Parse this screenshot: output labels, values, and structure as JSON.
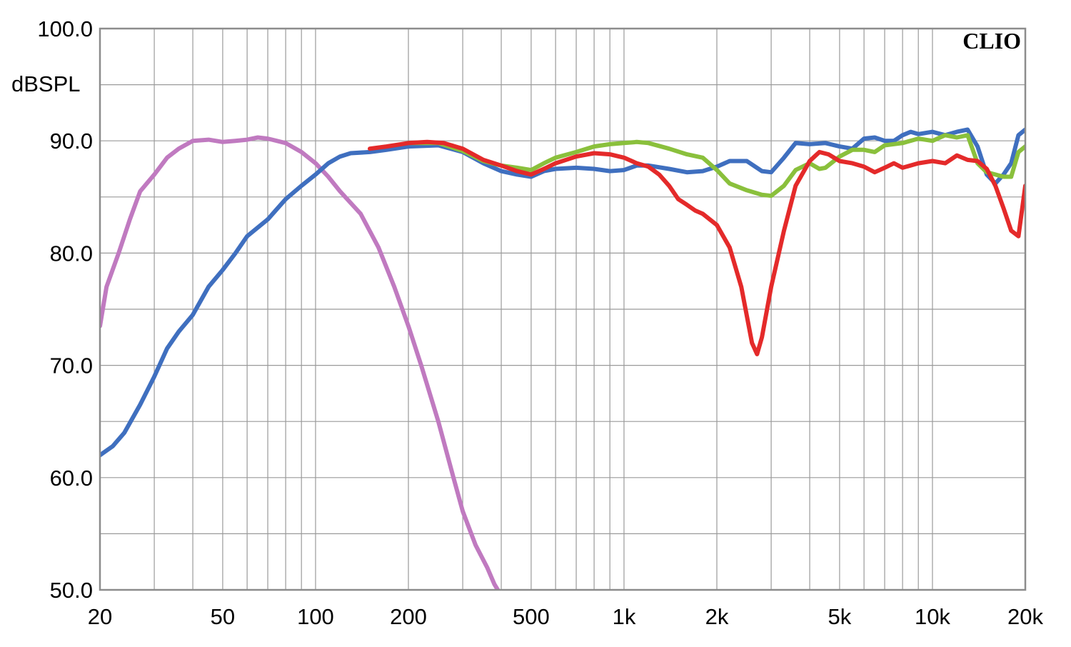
{
  "chart_data": {
    "type": "line",
    "title": "",
    "xlabel": "",
    "ylabel": "dBSPL",
    "brand": "CLIO",
    "x_scale": "log",
    "xlim": [
      20,
      20000
    ],
    "ylim": [
      50,
      100
    ],
    "grid": true,
    "legend": "none",
    "x_ticks": [
      {
        "value": 20,
        "label": "20"
      },
      {
        "value": 50,
        "label": "50"
      },
      {
        "value": 100,
        "label": "100"
      },
      {
        "value": 200,
        "label": "200"
      },
      {
        "value": 500,
        "label": "500"
      },
      {
        "value": 1000,
        "label": "1k"
      },
      {
        "value": 2000,
        "label": "2k"
      },
      {
        "value": 5000,
        "label": "5k"
      },
      {
        "value": 10000,
        "label": "10k"
      },
      {
        "value": 20000,
        "label": "20k"
      }
    ],
    "y_ticks": [
      {
        "value": 100,
        "label": "100.0"
      },
      {
        "value": 90,
        "label": "90.0"
      },
      {
        "value": 80,
        "label": "80.0"
      },
      {
        "value": 70,
        "label": "70.0"
      },
      {
        "value": 60,
        "label": "60.0"
      },
      {
        "value": 50,
        "label": "50.0"
      }
    ],
    "series": [
      {
        "color": "#c07ac0",
        "points": [
          [
            20,
            73.5
          ],
          [
            21,
            77
          ],
          [
            23,
            80
          ],
          [
            25,
            83
          ],
          [
            27,
            85.5
          ],
          [
            30,
            87
          ],
          [
            33,
            88.5
          ],
          [
            36,
            89.3
          ],
          [
            40,
            90
          ],
          [
            45,
            90.1
          ],
          [
            50,
            89.9
          ],
          [
            55,
            90
          ],
          [
            60,
            90.1
          ],
          [
            65,
            90.3
          ],
          [
            70,
            90.2
          ],
          [
            80,
            89.8
          ],
          [
            90,
            89
          ],
          [
            100,
            88
          ],
          [
            110,
            86.8
          ],
          [
            120,
            85.5
          ],
          [
            140,
            83.5
          ],
          [
            160,
            80.5
          ],
          [
            180,
            77
          ],
          [
            200,
            73.5
          ],
          [
            220,
            70
          ],
          [
            250,
            65
          ],
          [
            280,
            60
          ],
          [
            300,
            57
          ],
          [
            330,
            54
          ],
          [
            360,
            52
          ],
          [
            380,
            50.5
          ],
          [
            400,
            49.5
          ]
        ]
      },
      {
        "color": "#3f6fbf",
        "points": [
          [
            20,
            62
          ],
          [
            22,
            62.8
          ],
          [
            24,
            64
          ],
          [
            27,
            66.5
          ],
          [
            30,
            69
          ],
          [
            33,
            71.5
          ],
          [
            36,
            73
          ],
          [
            40,
            74.5
          ],
          [
            45,
            77
          ],
          [
            50,
            78.5
          ],
          [
            55,
            80
          ],
          [
            60,
            81.5
          ],
          [
            70,
            83
          ],
          [
            80,
            84.8
          ],
          [
            90,
            86
          ],
          [
            100,
            87
          ],
          [
            110,
            88
          ],
          [
            120,
            88.6
          ],
          [
            130,
            88.9
          ],
          [
            150,
            89
          ],
          [
            170,
            89.2
          ],
          [
            200,
            89.5
          ],
          [
            250,
            89.6
          ],
          [
            300,
            89
          ],
          [
            350,
            88
          ],
          [
            400,
            87.3
          ],
          [
            450,
            87
          ],
          [
            500,
            86.8
          ],
          [
            550,
            87.3
          ],
          [
            600,
            87.5
          ],
          [
            700,
            87.6
          ],
          [
            800,
            87.5
          ],
          [
            900,
            87.3
          ],
          [
            1000,
            87.4
          ],
          [
            1100,
            87.8
          ],
          [
            1200,
            87.8
          ],
          [
            1400,
            87.5
          ],
          [
            1600,
            87.2
          ],
          [
            1800,
            87.3
          ],
          [
            2000,
            87.7
          ],
          [
            2200,
            88.2
          ],
          [
            2500,
            88.2
          ],
          [
            2800,
            87.3
          ],
          [
            3000,
            87.2
          ],
          [
            3300,
            88.5
          ],
          [
            3600,
            89.8
          ],
          [
            4000,
            89.7
          ],
          [
            4500,
            89.8
          ],
          [
            5000,
            89.5
          ],
          [
            5500,
            89.3
          ],
          [
            6000,
            90.2
          ],
          [
            6500,
            90.3
          ],
          [
            7000,
            90
          ],
          [
            7500,
            90
          ],
          [
            8000,
            90.5
          ],
          [
            8500,
            90.8
          ],
          [
            9000,
            90.6
          ],
          [
            10000,
            90.8
          ],
          [
            11000,
            90.5
          ],
          [
            12000,
            90.8
          ],
          [
            13000,
            91
          ],
          [
            14000,
            89.5
          ],
          [
            15000,
            87
          ],
          [
            16000,
            86.2
          ],
          [
            17000,
            87
          ],
          [
            18000,
            88
          ],
          [
            19000,
            90.5
          ],
          [
            20000,
            91
          ]
        ]
      },
      {
        "color": "#8ac03c",
        "points": [
          [
            200,
            89.8
          ],
          [
            250,
            89.8
          ],
          [
            300,
            89.1
          ],
          [
            350,
            88.2
          ],
          [
            400,
            87.8
          ],
          [
            450,
            87.6
          ],
          [
            500,
            87.4
          ],
          [
            550,
            88
          ],
          [
            600,
            88.5
          ],
          [
            700,
            89
          ],
          [
            800,
            89.5
          ],
          [
            900,
            89.7
          ],
          [
            1000,
            89.8
          ],
          [
            1100,
            89.9
          ],
          [
            1200,
            89.8
          ],
          [
            1400,
            89.3
          ],
          [
            1600,
            88.8
          ],
          [
            1800,
            88.5
          ],
          [
            2000,
            87.4
          ],
          [
            2200,
            86.2
          ],
          [
            2500,
            85.6
          ],
          [
            2800,
            85.2
          ],
          [
            3000,
            85.1
          ],
          [
            3300,
            86
          ],
          [
            3600,
            87.4
          ],
          [
            4000,
            88
          ],
          [
            4300,
            87.5
          ],
          [
            4500,
            87.6
          ],
          [
            5000,
            88.6
          ],
          [
            5500,
            89.2
          ],
          [
            6000,
            89.2
          ],
          [
            6500,
            89
          ],
          [
            7000,
            89.6
          ],
          [
            8000,
            89.8
          ],
          [
            9000,
            90.2
          ],
          [
            10000,
            90
          ],
          [
            11000,
            90.5
          ],
          [
            12000,
            90.3
          ],
          [
            13000,
            90.5
          ],
          [
            14000,
            88
          ],
          [
            15000,
            87.2
          ],
          [
            16000,
            87
          ],
          [
            17000,
            86.8
          ],
          [
            18000,
            86.8
          ],
          [
            19000,
            89
          ],
          [
            20000,
            89.5
          ]
        ]
      },
      {
        "color": "#e42a2a",
        "points": [
          [
            150,
            89.3
          ],
          [
            170,
            89.5
          ],
          [
            200,
            89.8
          ],
          [
            230,
            89.9
          ],
          [
            260,
            89.8
          ],
          [
            300,
            89.3
          ],
          [
            350,
            88.3
          ],
          [
            400,
            87.8
          ],
          [
            450,
            87.3
          ],
          [
            500,
            87
          ],
          [
            550,
            87.5
          ],
          [
            600,
            88
          ],
          [
            700,
            88.6
          ],
          [
            800,
            88.9
          ],
          [
            900,
            88.8
          ],
          [
            1000,
            88.5
          ],
          [
            1100,
            88
          ],
          [
            1200,
            87.7
          ],
          [
            1300,
            87
          ],
          [
            1400,
            86
          ],
          [
            1500,
            84.8
          ],
          [
            1600,
            84.3
          ],
          [
            1700,
            83.8
          ],
          [
            1800,
            83.5
          ],
          [
            2000,
            82.5
          ],
          [
            2200,
            80.5
          ],
          [
            2400,
            77
          ],
          [
            2600,
            72
          ],
          [
            2700,
            71
          ],
          [
            2800,
            72.5
          ],
          [
            3000,
            77
          ],
          [
            3300,
            82
          ],
          [
            3600,
            86
          ],
          [
            4000,
            88.2
          ],
          [
            4300,
            89
          ],
          [
            4600,
            88.8
          ],
          [
            5000,
            88.2
          ],
          [
            5500,
            88
          ],
          [
            6000,
            87.7
          ],
          [
            6500,
            87.2
          ],
          [
            7000,
            87.6
          ],
          [
            7500,
            88
          ],
          [
            8000,
            87.6
          ],
          [
            9000,
            88
          ],
          [
            10000,
            88.2
          ],
          [
            11000,
            88
          ],
          [
            12000,
            88.7
          ],
          [
            13000,
            88.3
          ],
          [
            14000,
            88.2
          ],
          [
            15000,
            87.5
          ],
          [
            16000,
            86
          ],
          [
            17000,
            84
          ],
          [
            18000,
            82
          ],
          [
            19000,
            81.5
          ],
          [
            20000,
            86
          ]
        ]
      }
    ]
  }
}
